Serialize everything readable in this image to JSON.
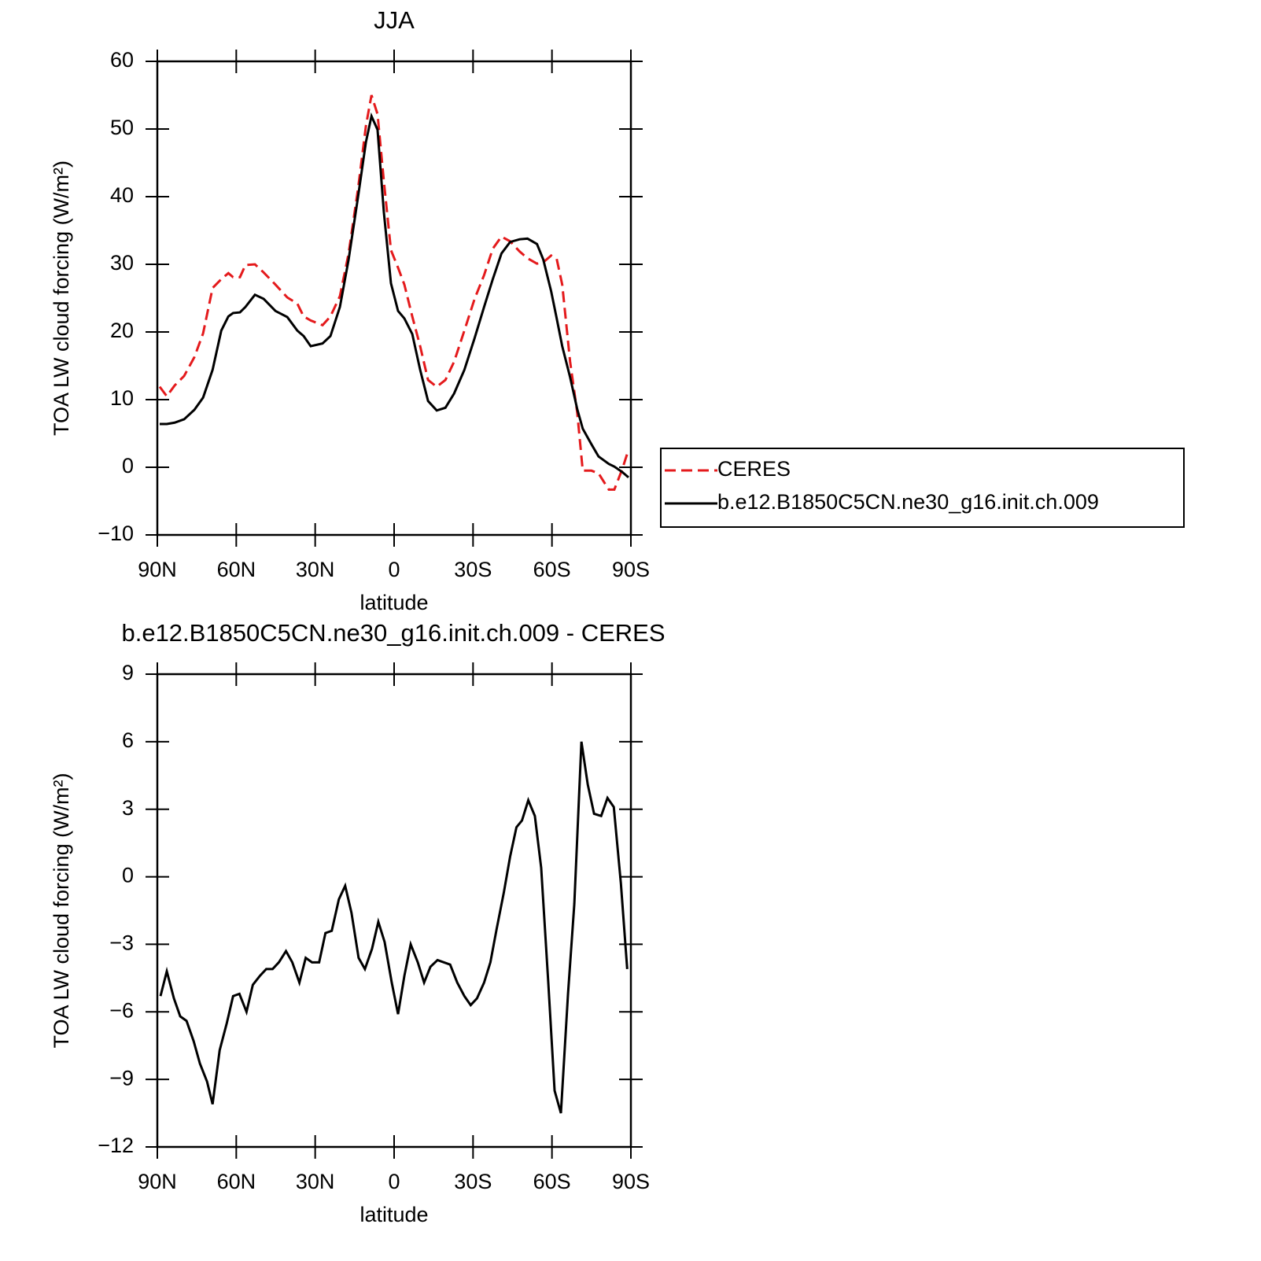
{
  "chart_data": [
    {
      "type": "line",
      "title": "JJA",
      "xlabel": "latitude",
      "ylabel": "TOA LW cloud forcing (W/m²)",
      "xlim": [
        90,
        -90
      ],
      "ylim": [
        -10,
        60
      ],
      "xticks": [
        {
          "value": 90,
          "label": "90N"
        },
        {
          "value": 60,
          "label": "60N"
        },
        {
          "value": 30,
          "label": "30N"
        },
        0,
        {
          "value": -30,
          "label": "30S"
        },
        {
          "value": -60,
          "label": "60S"
        },
        {
          "value": -90,
          "label": "90S"
        }
      ],
      "yticks": [
        {
          "value": -10,
          "label": "−10"
        },
        0,
        10,
        20,
        30,
        40,
        50,
        60
      ],
      "legend": "right",
      "x": [
        89.1,
        86.4,
        83.4,
        79.8,
        75.9,
        72.6,
        69.0,
        65.7,
        63.0,
        61.2,
        58.6,
        56.5,
        52.9,
        49.6,
        45.1,
        40.6,
        36.8,
        34.4,
        31.7,
        27.2,
        24.2,
        20.6,
        17.3,
        13.7,
        10.7,
        8.6,
        6.3,
        3.9,
        1.2,
        -1.5,
        -3.9,
        -6.9,
        -9.9,
        -12.9,
        -16.2,
        -19.5,
        -22.8,
        -26.7,
        -30.6,
        -34.2,
        -37.5,
        -40.8,
        -44.1,
        -47.7,
        -50.7,
        -54.3,
        -56.7,
        -59.7,
        -61.8,
        -63.9,
        -66.9,
        -69.6,
        -71.7,
        -75.0,
        -77.7,
        -81.6,
        -83.7,
        -86.7,
        -89.1
      ],
      "series": [
        {
          "name": "CERES",
          "color": "#e41a1c",
          "style": "dashed",
          "values": [
            11.9,
            10.5,
            12.1,
            13.5,
            16.3,
            19.8,
            26.5,
            27.8,
            28.7,
            28.1,
            28.1,
            29.9,
            30.0,
            28.8,
            27.0,
            25.1,
            24.2,
            22.3,
            21.7,
            21.0,
            22.3,
            25.3,
            31.6,
            41.2,
            50.5,
            55.0,
            52.2,
            42.3,
            32.1,
            29.5,
            27.0,
            22.3,
            17.9,
            12.9,
            11.9,
            12.9,
            15.6,
            20.2,
            24.9,
            28.4,
            32.3,
            34.1,
            33.4,
            31.9,
            30.9,
            30.1,
            30.3,
            31.3,
            30.8,
            27.0,
            15.6,
            8.1,
            -0.5,
            -0.5,
            -0.9,
            -3.3,
            -3.3,
            -0.3,
            2.6
          ]
        },
        {
          "name": "b.e12.B1850C5CN.ne30_g16.init.ch.009",
          "color": "#000000",
          "style": "solid",
          "values": [
            6.4,
            6.4,
            6.6,
            7.1,
            8.5,
            10.3,
            14.4,
            20.2,
            22.3,
            22.8,
            22.9,
            23.7,
            25.5,
            24.9,
            23.1,
            22.2,
            20.2,
            19.4,
            17.9,
            18.3,
            19.4,
            23.7,
            30.7,
            40.0,
            48.1,
            51.9,
            49.9,
            37.7,
            27.2,
            23.1,
            22.0,
            19.7,
            14.4,
            9.8,
            8.4,
            8.8,
            10.9,
            14.4,
            19.1,
            23.7,
            27.8,
            31.6,
            33.3,
            33.7,
            33.8,
            33.0,
            30.7,
            26.0,
            22.0,
            17.9,
            13.3,
            8.6,
            5.7,
            3.4,
            1.6,
            0.5,
            0.1,
            -0.7,
            -1.5
          ]
        }
      ]
    },
    {
      "type": "line",
      "title": "b.e12.B1850C5CN.ne30_g16.init.ch.009 - CERES",
      "xlabel": "latitude",
      "ylabel": "TOA LW cloud forcing (W/m²)",
      "xlim": [
        90,
        -90
      ],
      "ylim": [
        -12,
        9
      ],
      "xticks": [
        {
          "value": 90,
          "label": "90N"
        },
        {
          "value": 60,
          "label": "60N"
        },
        {
          "value": 30,
          "label": "30N"
        },
        0,
        {
          "value": -30,
          "label": "30S"
        },
        {
          "value": -60,
          "label": "60S"
        },
        {
          "value": -90,
          "label": "90S"
        }
      ],
      "yticks": [
        {
          "value": -12,
          "label": "−12"
        },
        {
          "value": -9,
          "label": "−9"
        },
        {
          "value": -6,
          "label": "−6"
        },
        {
          "value": -3,
          "label": "−3"
        },
        0,
        3,
        6,
        9
      ],
      "x": [
        88.8,
        86.4,
        83.7,
        81.3,
        78.9,
        76.2,
        73.8,
        71.1,
        69.0,
        66.3,
        63.6,
        61.2,
        58.8,
        56.1,
        53.7,
        51.0,
        48.6,
        46.2,
        43.8,
        41.1,
        38.7,
        36.0,
        33.6,
        31.2,
        28.5,
        26.1,
        23.7,
        21.0,
        18.6,
        16.2,
        13.5,
        11.1,
        8.4,
        6.0,
        3.6,
        0.9,
        -1.5,
        -3.9,
        -6.3,
        -9.0,
        -11.4,
        -13.8,
        -16.5,
        -21.3,
        -24.0,
        -26.7,
        -29.1,
        -31.5,
        -34.2,
        -36.6,
        -39.0,
        -41.7,
        -44.1,
        -46.5,
        -48.6,
        -51.0,
        -53.5,
        -55.9,
        -58.6,
        -61.0,
        -63.4,
        -66.1,
        -68.5,
        -71.2,
        -73.6,
        -76.0,
        -78.7,
        -81.1,
        -83.5,
        -86.2,
        -88.6
      ],
      "series": [
        {
          "color": "#000000",
          "style": "solid",
          "values": [
            -5.3,
            -4.2,
            -5.4,
            -6.2,
            -6.4,
            -7.3,
            -8.3,
            -9.1,
            -10.1,
            -7.7,
            -6.5,
            -5.3,
            -5.2,
            -6.0,
            -4.8,
            -4.4,
            -4.1,
            -4.1,
            -3.8,
            -3.3,
            -3.8,
            -4.7,
            -3.6,
            -3.8,
            -3.8,
            -2.5,
            -2.4,
            -1.0,
            -0.4,
            -1.6,
            -3.6,
            -4.1,
            -3.2,
            -2.0,
            -2.9,
            -4.7,
            -6.1,
            -4.4,
            -3.0,
            -3.8,
            -4.7,
            -4.0,
            -3.7,
            -3.9,
            -4.7,
            -5.3,
            -5.7,
            -5.4,
            -4.7,
            -3.8,
            -2.3,
            -0.7,
            0.9,
            2.2,
            2.5,
            3.4,
            2.7,
            0.4,
            -4.7,
            -9.5,
            -10.5,
            -5.2,
            -1.2,
            6.0,
            4.1,
            2.8,
            2.7,
            3.5,
            3.1,
            -0.3,
            -4.1
          ]
        }
      ]
    }
  ]
}
